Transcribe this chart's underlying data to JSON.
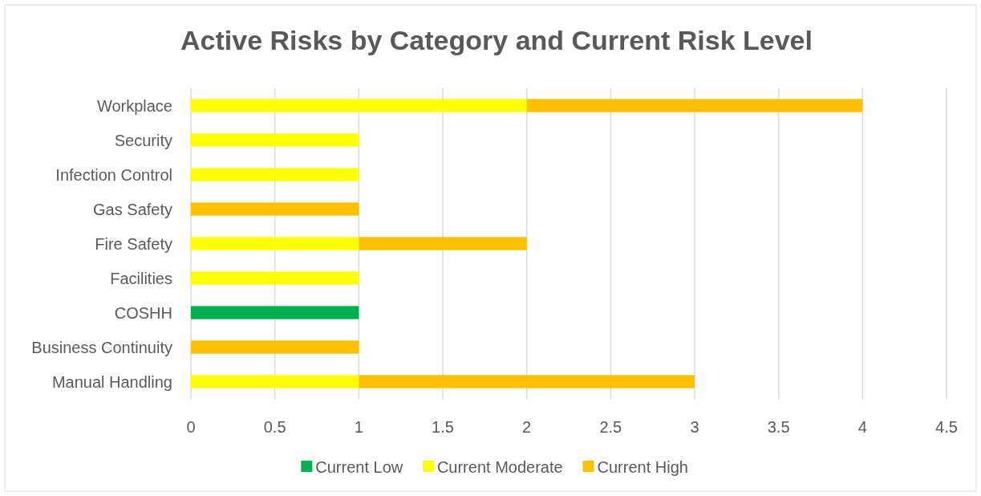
{
  "chart_data": {
    "type": "bar",
    "title": "Active Risks by Category and Current Risk Level",
    "orientation": "horizontal",
    "stacked": true,
    "categories": [
      "Workplace",
      "Security",
      "Infection Control",
      "Gas Safety",
      "Fire Safety",
      "Facilities",
      "COSHH",
      "Business Continuity",
      "Manual Handling"
    ],
    "series": [
      {
        "name": "Current Low",
        "color": "#00b050",
        "values": [
          null,
          null,
          null,
          null,
          null,
          null,
          1,
          null,
          null
        ]
      },
      {
        "name": "Current Moderate",
        "color": "#ffff00",
        "values": [
          2,
          1,
          1,
          null,
          1,
          1,
          null,
          null,
          1
        ]
      },
      {
        "name": "Current High",
        "color": "#ffc000",
        "values": [
          2,
          null,
          null,
          1,
          1,
          null,
          null,
          1,
          2
        ]
      }
    ],
    "xlim": [
      0,
      4.5
    ],
    "xticks": [
      0,
      0.5,
      1,
      1.5,
      2,
      2.5,
      3,
      3.5,
      4,
      4.5
    ],
    "grid": "x",
    "legend": "bottom"
  }
}
